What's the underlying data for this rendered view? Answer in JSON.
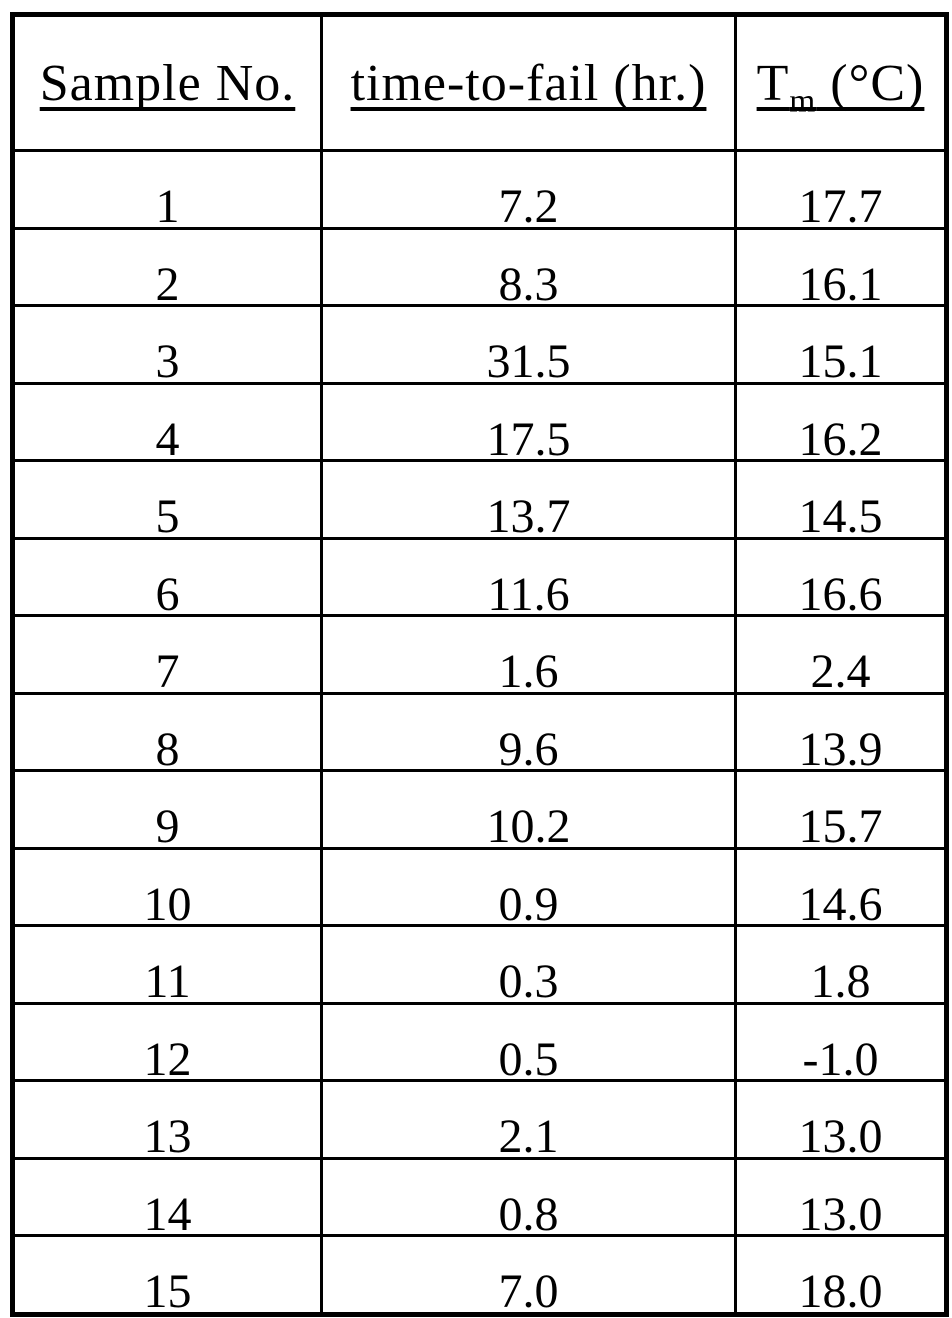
{
  "table": {
    "header": {
      "col1": "Sample No.",
      "col2": "time-to-fail (hr.)",
      "col3_base": "T",
      "col3_sub": "m",
      "col3_rest": " (°C)"
    },
    "rows": [
      [
        "1",
        "7.2",
        "17.7"
      ],
      [
        "2",
        "8.3",
        "16.1"
      ],
      [
        "3",
        "31.5",
        "15.1"
      ],
      [
        "4",
        "17.5",
        "16.2"
      ],
      [
        "5",
        "13.7",
        "14.5"
      ],
      [
        "6",
        "11.6",
        "16.6"
      ],
      [
        "7",
        "1.6",
        "2.4"
      ],
      [
        "8",
        "9.6",
        "13.9"
      ],
      [
        "9",
        "10.2",
        "15.7"
      ],
      [
        "10",
        "0.9",
        "14.6"
      ],
      [
        "11",
        "0.3",
        "1.8"
      ],
      [
        "12",
        "0.5",
        "-1.0"
      ],
      [
        "13",
        "2.1",
        "13.0"
      ],
      [
        "14",
        "0.8",
        "13.0"
      ],
      [
        "15",
        "7.0",
        "18.0"
      ]
    ],
    "colors": {
      "border": "#000000",
      "text": "#000000",
      "background": "#ffffff"
    }
  },
  "chart_data": {
    "type": "table",
    "title": "",
    "columns": [
      "Sample No.",
      "time-to-fail (hr.)",
      "Tm (°C)"
    ],
    "sample_no": [
      1,
      2,
      3,
      4,
      5,
      6,
      7,
      8,
      9,
      10,
      11,
      12,
      13,
      14,
      15
    ],
    "time_to_fail_hr": [
      7.2,
      8.3,
      31.5,
      17.5,
      13.7,
      11.6,
      1.6,
      9.6,
      10.2,
      0.9,
      0.3,
      0.5,
      2.1,
      0.8,
      7.0
    ],
    "tm_c": [
      17.7,
      16.1,
      15.1,
      16.2,
      14.5,
      16.6,
      2.4,
      13.9,
      15.7,
      14.6,
      1.8,
      -1.0,
      13.0,
      13.0,
      18.0
    ]
  }
}
